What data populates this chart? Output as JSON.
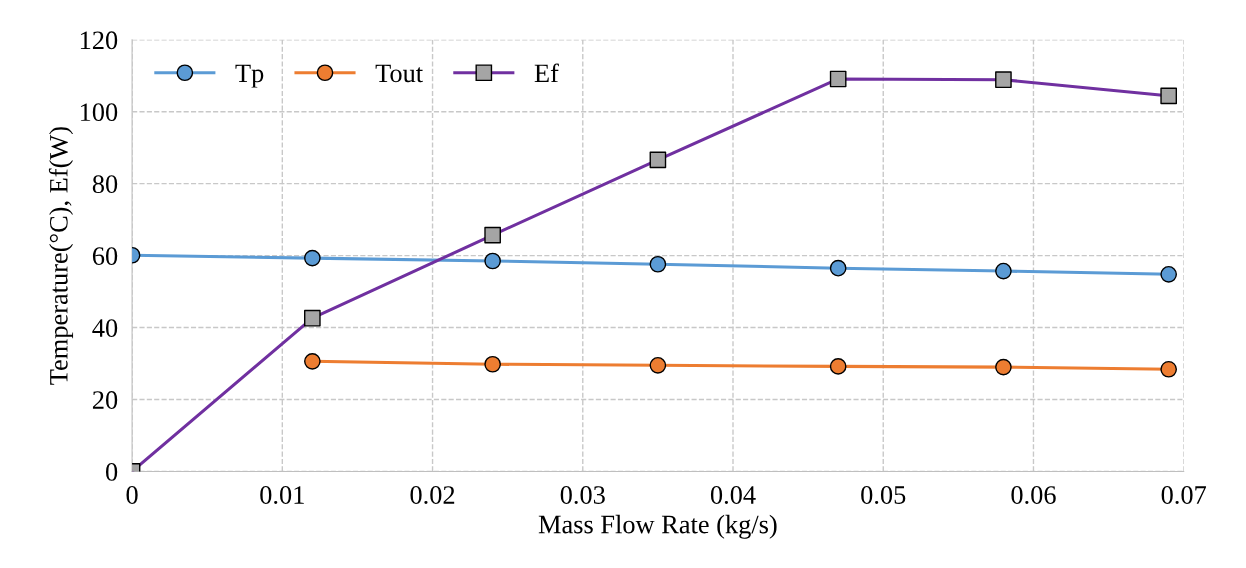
{
  "chart_data": {
    "type": "line",
    "xlabel": "Mass Flow Rate (kg/s)",
    "ylabel": "Temperature(°C), Ef(W)",
    "xlim": [
      0,
      0.07
    ],
    "xticks": [
      0,
      0.01,
      0.02,
      0.03,
      0.04,
      0.05,
      0.06,
      0.07
    ],
    "ylim": [
      0,
      120
    ],
    "yticks": [
      0,
      20,
      40,
      60,
      80,
      100,
      120
    ],
    "grid": true,
    "legend": "top left",
    "line_style": "solid",
    "series": [
      {
        "name": "Tp",
        "color": "#5b9bd5",
        "marker": "circle",
        "x": [
          0,
          0.012,
          0.024,
          0.035,
          0.047,
          0.058,
          0.069
        ],
        "values": [
          60.1,
          59.3,
          58.5,
          57.6,
          56.5,
          55.7,
          54.8
        ]
      },
      {
        "name": "Tout",
        "color": "#ed7d31",
        "marker": "circle",
        "x": [
          0.012,
          0.024,
          0.035,
          0.047,
          0.058,
          0.069
        ],
        "values": [
          30.6,
          29.8,
          29.5,
          29.2,
          29.0,
          28.4
        ]
      },
      {
        "name": "Ef",
        "color": "#7030a0",
        "marker": "square",
        "colors": [
          "#a5a5a5",
          "#a5a5a5",
          "#a5a5a5",
          "#a5a5a5",
          "#a5a5a5",
          "#a5a5a5",
          "#a5a5a5"
        ],
        "x": [
          0,
          0.012,
          0.024,
          0.035,
          0.047,
          0.058,
          0.069
        ],
        "values": [
          0,
          42.6,
          65.7,
          86.6,
          109.1,
          108.9,
          104.4
        ]
      }
    ]
  }
}
